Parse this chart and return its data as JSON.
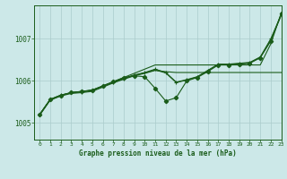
{
  "title": "Graphe pression niveau de la mer (hPa)",
  "background_color": "#cce8e8",
  "grid_color": "#aacccc",
  "line_color": "#1a5c1a",
  "xlim": [
    -0.5,
    23
  ],
  "ylim": [
    1004.6,
    1007.8
  ],
  "yticks": [
    1005,
    1006,
    1007
  ],
  "xticks": [
    0,
    1,
    2,
    3,
    4,
    5,
    6,
    7,
    8,
    9,
    10,
    11,
    12,
    13,
    14,
    15,
    16,
    17,
    18,
    19,
    20,
    21,
    22,
    23
  ],
  "series": {
    "upper": [
      1005.2,
      1005.55,
      1005.65,
      1005.72,
      1005.75,
      1005.78,
      1005.88,
      1005.98,
      1006.08,
      1006.18,
      1006.28,
      1006.38,
      1006.38,
      1006.38,
      1006.38,
      1006.38,
      1006.38,
      1006.38,
      1006.38,
      1006.38,
      1006.38,
      1006.38,
      1006.88,
      1007.62
    ],
    "noisy": [
      1005.2,
      1005.55,
      1005.65,
      1005.72,
      1005.75,
      1005.78,
      1005.88,
      1005.98,
      1006.08,
      1006.12,
      1006.1,
      1005.82,
      1005.52,
      1005.6,
      1006.0,
      1006.08,
      1006.22,
      1006.38,
      1006.38,
      1006.4,
      1006.42,
      1006.55,
      1006.95,
      1007.6
    ],
    "mid1": [
      1005.2,
      1005.56,
      1005.66,
      1005.72,
      1005.74,
      1005.78,
      1005.87,
      1005.97,
      1006.06,
      1006.14,
      1006.2,
      1006.28,
      1006.2,
      1005.97,
      1006.03,
      1006.1,
      1006.25,
      1006.4,
      1006.4,
      1006.42,
      1006.44,
      1006.57,
      1007.0,
      1007.58
    ],
    "mid2": [
      1005.2,
      1005.56,
      1005.66,
      1005.72,
      1005.74,
      1005.77,
      1005.87,
      1005.97,
      1006.05,
      1006.13,
      1006.19,
      1006.26,
      1006.19,
      1005.96,
      1006.02,
      1006.09,
      1006.24,
      1006.39,
      1006.39,
      1006.41,
      1006.43,
      1006.56,
      1006.98,
      1007.56
    ],
    "low_trend": [
      1005.18,
      1005.54,
      1005.64,
      1005.7,
      1005.72,
      1005.75,
      1005.85,
      1005.95,
      1006.04,
      1006.12,
      1006.18,
      1006.25,
      1006.22,
      1006.2,
      1006.2,
      1006.2,
      1006.2,
      1006.2,
      1006.2,
      1006.2,
      1006.2,
      1006.2,
      1006.2,
      1006.2
    ]
  }
}
